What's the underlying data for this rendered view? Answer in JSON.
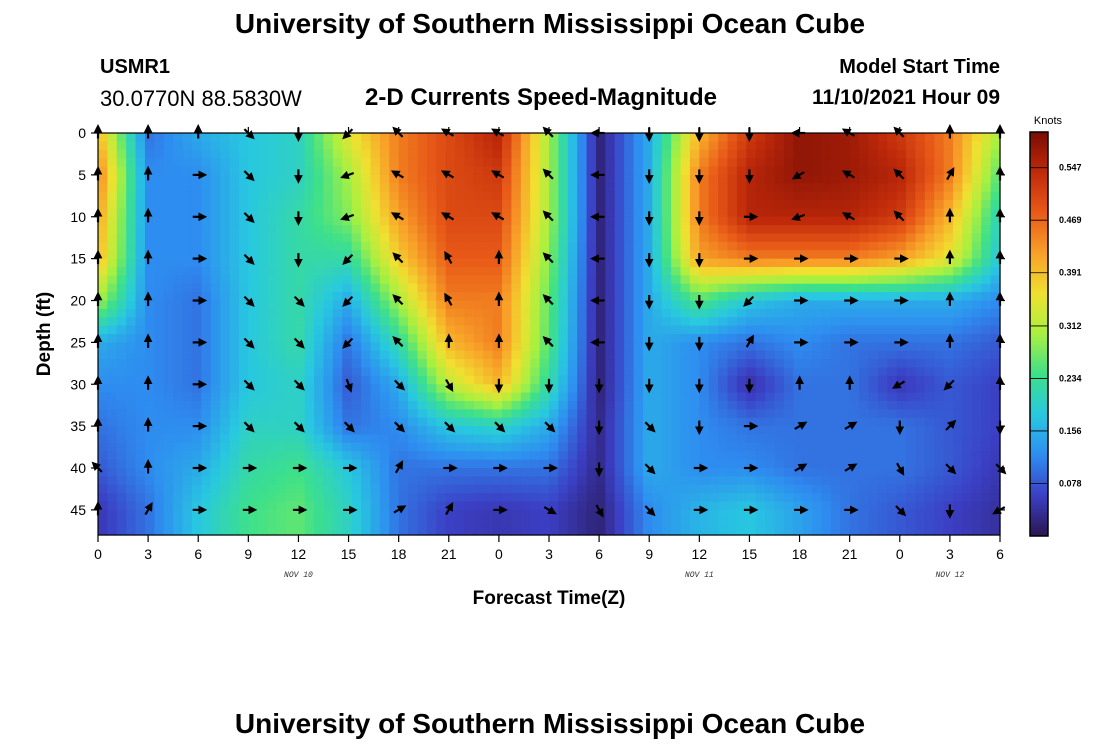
{
  "header": {
    "title": "University of Southern Mississippi Ocean Cube",
    "station_id": "USMR1",
    "coords": "30.0770N  88.5830W",
    "plot_title": "2-D Currents Speed-Magnitude",
    "start_label": "Model Start Time",
    "start_value": "11/10/2021 Hour 09"
  },
  "footer": {
    "title": "University of Southern Mississippi Ocean Cube"
  },
  "chart_data": {
    "type": "heatmap",
    "title": "2-D Currents Speed-Magnitude",
    "xlabel": "Forecast Time(Z)",
    "ylabel": "Depth (ft)",
    "x_ticks": [
      "0",
      "3",
      "6",
      "9",
      "12",
      "15",
      "18",
      "21",
      "0",
      "3",
      "6",
      "9",
      "12",
      "15",
      "18",
      "21",
      "0",
      "3",
      "6"
    ],
    "x_hours": [
      0,
      3,
      6,
      9,
      12,
      15,
      18,
      21,
      24,
      27,
      30,
      33,
      36,
      39,
      42,
      45,
      48,
      51,
      54
    ],
    "date_labels": [
      {
        "text": "NOV 10",
        "hour": 12
      },
      {
        "text": "NOV 11",
        "hour": 36
      },
      {
        "text": "NOV 12",
        "hour": 51
      }
    ],
    "y_ticks": [
      0,
      5,
      10,
      15,
      20,
      25,
      30,
      35,
      40,
      45
    ],
    "xlim": [
      0,
      54
    ],
    "ylim": [
      0,
      48
    ],
    "y_inverted": true,
    "colorbar": {
      "units": "Knots",
      "ticks": [
        0.078,
        0.156,
        0.234,
        0.312,
        0.391,
        0.469,
        0.547
      ],
      "range": [
        0.0,
        0.6
      ],
      "colormap": [
        "#2a1650",
        "#3b3fc4",
        "#2e8df0",
        "#28c8e0",
        "#3de08a",
        "#a8f040",
        "#f0e030",
        "#f8a028",
        "#e85a18",
        "#c02a0a",
        "#7a0c04"
      ]
    },
    "grid_hours": [
      0,
      3,
      6,
      9,
      12,
      15,
      18,
      21,
      24,
      27,
      30,
      33,
      36,
      39,
      42,
      45,
      48,
      51,
      54
    ],
    "grid_depths": [
      0,
      5,
      10,
      15,
      20,
      25,
      30,
      35,
      40,
      45
    ],
    "speed_knots": [
      [
        0.4,
        0.1,
        0.15,
        0.18,
        0.2,
        0.35,
        0.45,
        0.5,
        0.55,
        0.3,
        0.02,
        0.15,
        0.4,
        0.52,
        0.58,
        0.57,
        0.52,
        0.45,
        0.3
      ],
      [
        0.45,
        0.12,
        0.12,
        0.18,
        0.2,
        0.3,
        0.45,
        0.5,
        0.52,
        0.3,
        0.02,
        0.15,
        0.45,
        0.55,
        0.58,
        0.57,
        0.55,
        0.45,
        0.25
      ],
      [
        0.42,
        0.12,
        0.12,
        0.18,
        0.22,
        0.28,
        0.42,
        0.5,
        0.5,
        0.3,
        0.02,
        0.15,
        0.45,
        0.55,
        0.55,
        0.55,
        0.52,
        0.4,
        0.2
      ],
      [
        0.4,
        0.12,
        0.12,
        0.18,
        0.22,
        0.22,
        0.38,
        0.48,
        0.48,
        0.28,
        0.02,
        0.15,
        0.42,
        0.45,
        0.45,
        0.45,
        0.42,
        0.35,
        0.18
      ],
      [
        0.3,
        0.12,
        0.1,
        0.18,
        0.22,
        0.15,
        0.3,
        0.45,
        0.45,
        0.26,
        0.02,
        0.15,
        0.25,
        0.18,
        0.15,
        0.15,
        0.15,
        0.15,
        0.12
      ],
      [
        0.15,
        0.12,
        0.1,
        0.18,
        0.22,
        0.1,
        0.22,
        0.4,
        0.45,
        0.25,
        0.02,
        0.15,
        0.12,
        0.1,
        0.12,
        0.1,
        0.1,
        0.1,
        0.08
      ],
      [
        0.12,
        0.12,
        0.1,
        0.18,
        0.2,
        0.08,
        0.15,
        0.32,
        0.4,
        0.22,
        0.02,
        0.15,
        0.12,
        0.04,
        0.1,
        0.1,
        0.05,
        0.08,
        0.06
      ],
      [
        0.1,
        0.12,
        0.12,
        0.2,
        0.2,
        0.1,
        0.12,
        0.18,
        0.2,
        0.15,
        0.03,
        0.15,
        0.12,
        0.1,
        0.1,
        0.1,
        0.1,
        0.08,
        0.06
      ],
      [
        0.08,
        0.12,
        0.15,
        0.22,
        0.24,
        0.18,
        0.1,
        0.1,
        0.1,
        0.1,
        0.03,
        0.15,
        0.12,
        0.12,
        0.1,
        0.1,
        0.1,
        0.08,
        0.05
      ],
      [
        0.05,
        0.1,
        0.18,
        0.24,
        0.26,
        0.2,
        0.1,
        0.06,
        0.05,
        0.06,
        0.02,
        0.12,
        0.16,
        0.18,
        0.14,
        0.1,
        0.08,
        0.06,
        0.04
      ]
    ],
    "direction_deg": [
      [
        0,
        0,
        0,
        135,
        180,
        225,
        315,
        300,
        300,
        315,
        270,
        180,
        180,
        180,
        270,
        300,
        315,
        0,
        0
      ],
      [
        0,
        0,
        90,
        135,
        180,
        250,
        300,
        300,
        300,
        315,
        270,
        180,
        180,
        180,
        240,
        300,
        315,
        30,
        0
      ],
      [
        0,
        0,
        90,
        135,
        180,
        250,
        300,
        300,
        300,
        315,
        270,
        180,
        180,
        90,
        250,
        300,
        315,
        0,
        0
      ],
      [
        0,
        0,
        90,
        135,
        180,
        225,
        315,
        330,
        0,
        315,
        270,
        180,
        180,
        90,
        90,
        90,
        90,
        0,
        0
      ],
      [
        0,
        0,
        90,
        135,
        135,
        225,
        315,
        330,
        0,
        315,
        270,
        180,
        180,
        225,
        90,
        90,
        90,
        0,
        0
      ],
      [
        0,
        0,
        90,
        135,
        135,
        225,
        315,
        0,
        0,
        315,
        270,
        180,
        180,
        30,
        90,
        90,
        90,
        0,
        0
      ],
      [
        0,
        0,
        90,
        135,
        135,
        160,
        135,
        150,
        180,
        180,
        180,
        180,
        180,
        180,
        0,
        0,
        240,
        225,
        0
      ],
      [
        0,
        0,
        90,
        135,
        135,
        135,
        135,
        135,
        135,
        135,
        180,
        135,
        180,
        90,
        60,
        60,
        180,
        45,
        180
      ],
      [
        315,
        0,
        90,
        90,
        90,
        90,
        30,
        90,
        90,
        90,
        180,
        135,
        90,
        90,
        60,
        60,
        150,
        135,
        135
      ],
      [
        0,
        30,
        90,
        90,
        90,
        90,
        60,
        30,
        90,
        120,
        150,
        135,
        90,
        90,
        90,
        90,
        135,
        180,
        240
      ]
    ]
  }
}
